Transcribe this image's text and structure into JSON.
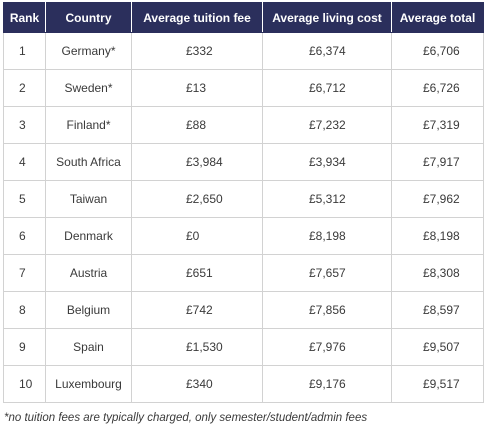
{
  "table": {
    "headers": [
      "Rank",
      "Country",
      "Average tuition fee",
      "Average living cost",
      "Average total"
    ],
    "rows": [
      [
        "1",
        "Germany*",
        "£332",
        "£6,374",
        "£6,706"
      ],
      [
        "2",
        "Sweden*",
        "£13",
        "£6,712",
        "£6,726"
      ],
      [
        "3",
        "Finland*",
        "£88",
        "£7,232",
        "£7,319"
      ],
      [
        "4",
        "South Africa",
        "£3,984",
        "£3,934",
        "£7,917"
      ],
      [
        "5",
        "Taiwan",
        "£2,650",
        "£5,312",
        "£7,962"
      ],
      [
        "6",
        "Denmark",
        "£0",
        "£8,198",
        "£8,198"
      ],
      [
        "7",
        "Austria",
        "£651",
        "£7,657",
        "£8,308"
      ],
      [
        "8",
        "Belgium",
        "£742",
        "£7,856",
        "£8,597"
      ],
      [
        "9",
        "Spain",
        "£1,530",
        "£7,976",
        "£9,507"
      ],
      [
        "10",
        "Luxembourg",
        "£340",
        "£9,176",
        "£9,517"
      ]
    ]
  },
  "footnote": "*no tuition fees are typically charged, only semester/student/admin fees",
  "colors": {
    "header_bg": "#2b2f5c",
    "header_text": "#ffffff",
    "border": "#d2d2d2"
  }
}
